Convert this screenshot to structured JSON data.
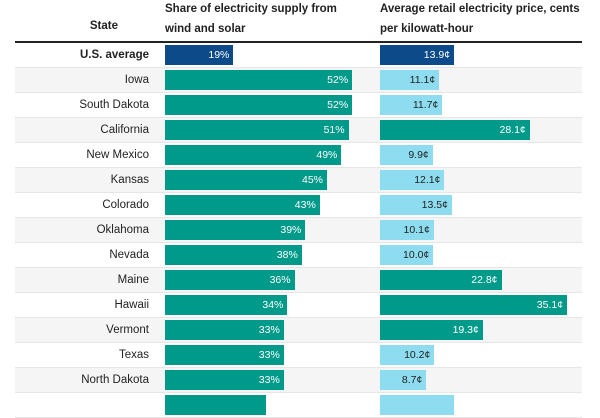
{
  "colors": {
    "average": "#0d4a8a",
    "above": "#009a8a",
    "below": "#8ddcef"
  },
  "chart_data": {
    "type": "table",
    "columns": [
      "State",
      "Share of electricity supply from wind and solar",
      "Average retail electricity price, cents per kilowatt-hour"
    ],
    "headers": {
      "state": "State",
      "share": "Share of electricity supply from wind and solar",
      "price": "Average retail electricity price, cents per kilowatt-hour"
    },
    "rows": [
      {
        "state": "U.S. average",
        "share": 19,
        "share_label": "19%",
        "price": 13.9,
        "price_label": "13.9¢",
        "avg": true
      },
      {
        "state": "Iowa",
        "share": 52,
        "share_label": "52%",
        "price": 11.1,
        "price_label": "11.1¢"
      },
      {
        "state": "South Dakota",
        "share": 52,
        "share_label": "52%",
        "price": 11.7,
        "price_label": "11.7¢"
      },
      {
        "state": "California",
        "share": 51,
        "share_label": "51%",
        "price": 28.1,
        "price_label": "28.1¢"
      },
      {
        "state": "New Mexico",
        "share": 49,
        "share_label": "49%",
        "price": 9.9,
        "price_label": "9.9¢"
      },
      {
        "state": "Kansas",
        "share": 45,
        "share_label": "45%",
        "price": 12.1,
        "price_label": "12.1¢"
      },
      {
        "state": "Colorado",
        "share": 43,
        "share_label": "43%",
        "price": 13.5,
        "price_label": "13.5¢"
      },
      {
        "state": "Oklahoma",
        "share": 39,
        "share_label": "39%",
        "price": 10.1,
        "price_label": "10.1¢"
      },
      {
        "state": "Nevada",
        "share": 38,
        "share_label": "38%",
        "price": 10.0,
        "price_label": "10.0¢"
      },
      {
        "state": "Maine",
        "share": 36,
        "share_label": "36%",
        "price": 22.8,
        "price_label": "22.8¢"
      },
      {
        "state": "Hawaii",
        "share": 34,
        "share_label": "34%",
        "price": 35.1,
        "price_label": "35.1¢"
      },
      {
        "state": "Vermont",
        "share": 33,
        "share_label": "33%",
        "price": 19.3,
        "price_label": "19.3¢"
      },
      {
        "state": "Texas",
        "share": 33,
        "share_label": "33%",
        "price": 10.2,
        "price_label": "10.2¢"
      },
      {
        "state": "North Dakota",
        "share": 33,
        "share_label": "33%",
        "price": 8.7,
        "price_label": "8.7¢"
      },
      {
        "share": 28,
        "price": 13.8
      }
    ]
  }
}
